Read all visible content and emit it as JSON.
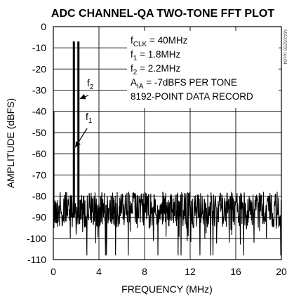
{
  "chart_data": {
    "type": "line",
    "title": "ADC CHANNEL-QA TWO-TONE FFT PLOT",
    "xlabel": "FREQUENCY (MHz)",
    "ylabel": "AMPLITUDE (dBFS)",
    "xlim": [
      0,
      20
    ],
    "ylim": [
      -110,
      0
    ],
    "xticks": [
      "0",
      "4",
      "8",
      "12",
      "16",
      "20"
    ],
    "yticks": [
      "0",
      "-10",
      "-20",
      "-30",
      "-40",
      "-50",
      "-60",
      "-70",
      "-80",
      "-90",
      "-100",
      "-110"
    ],
    "grid": true,
    "noise_floor_dbfs": [
      -78,
      -95
    ],
    "tones": [
      {
        "label": "f1",
        "label_sub": "1",
        "x": 1.8,
        "y": -7
      },
      {
        "label": "f2",
        "label_sub": "2",
        "x": 2.2,
        "y": -7
      }
    ],
    "annotations": [
      {
        "main": "f",
        "sub": "CLK",
        "rest": " = 40MHz"
      },
      {
        "main": "f",
        "sub": "1",
        "rest": " = 1.8MHz"
      },
      {
        "main": "f",
        "sub": "2",
        "rest": " = 2.2MHz"
      },
      {
        "main": "A",
        "sub": "IA",
        "rest": " = -7dBFS PER TONE"
      },
      {
        "main": "8192-POINT DATA RECORD",
        "sub": "",
        "rest": ""
      }
    ],
    "figure_code": "MAX6266 toc04"
  }
}
